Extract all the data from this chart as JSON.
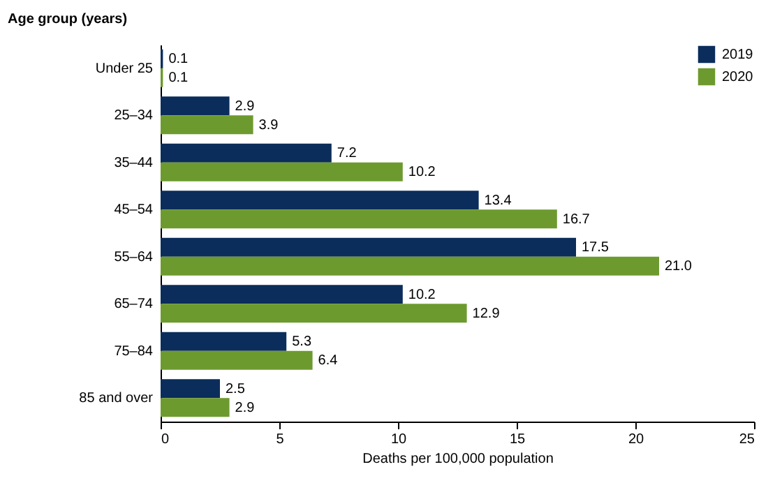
{
  "chart_data": {
    "type": "bar",
    "orientation": "horizontal",
    "ylabel": "Age group (years)",
    "xlabel": "Deaths per 100,000 population",
    "categories": [
      "Under 25",
      "25–34",
      "35–44",
      "45–54",
      "55–64",
      "65–74",
      "75–84",
      "85 and over"
    ],
    "series": [
      {
        "name": "2019",
        "color": "#0b2d5b",
        "values": [
          0.1,
          2.9,
          7.2,
          13.4,
          17.5,
          10.2,
          5.3,
          2.5
        ],
        "value_labels": [
          "0.1",
          "2.9",
          "7.2",
          "13.4",
          "17.5",
          "10.2",
          "5.3",
          "2.5"
        ]
      },
      {
        "name": "2020",
        "color": "#6d9a2f",
        "values": [
          0.1,
          3.9,
          10.2,
          16.7,
          21.0,
          12.9,
          6.4,
          2.9
        ],
        "value_labels": [
          "0.1",
          "3.9",
          "10.2",
          "16.7",
          "21.0",
          "12.9",
          "6.4",
          "2.9"
        ]
      }
    ],
    "xlim": [
      0,
      25
    ],
    "xticks": [
      0,
      5,
      10,
      15,
      20,
      25
    ],
    "legend": "top right"
  }
}
